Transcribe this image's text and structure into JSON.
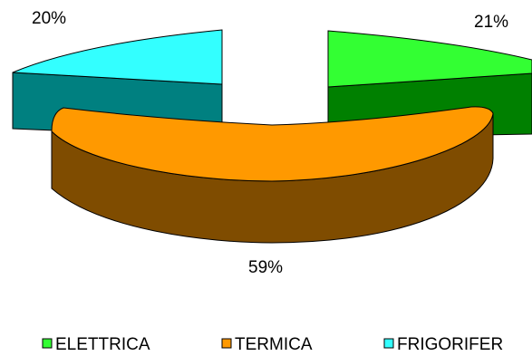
{
  "chart_data": {
    "type": "pie",
    "style": "3d-exploded",
    "categories": [
      "ELETTRICA",
      "TERMICA",
      "FRIGORIFERA"
    ],
    "values": [
      21,
      59,
      20
    ],
    "value_labels": [
      "21%",
      "59%",
      "20%"
    ],
    "legend_labels": [
      "ELETTRICA",
      "TERMICA",
      "FRIGORIFER"
    ],
    "colors": {
      "ELETTRICA": {
        "top": "#33FF33",
        "side": "#008000"
      },
      "TERMICA": {
        "top": "#FF9900",
        "side": "#7F4C00"
      },
      "FRIGORIFERA": {
        "top": "#33FFFF",
        "side": "#008080"
      }
    },
    "legend_position": "bottom"
  }
}
